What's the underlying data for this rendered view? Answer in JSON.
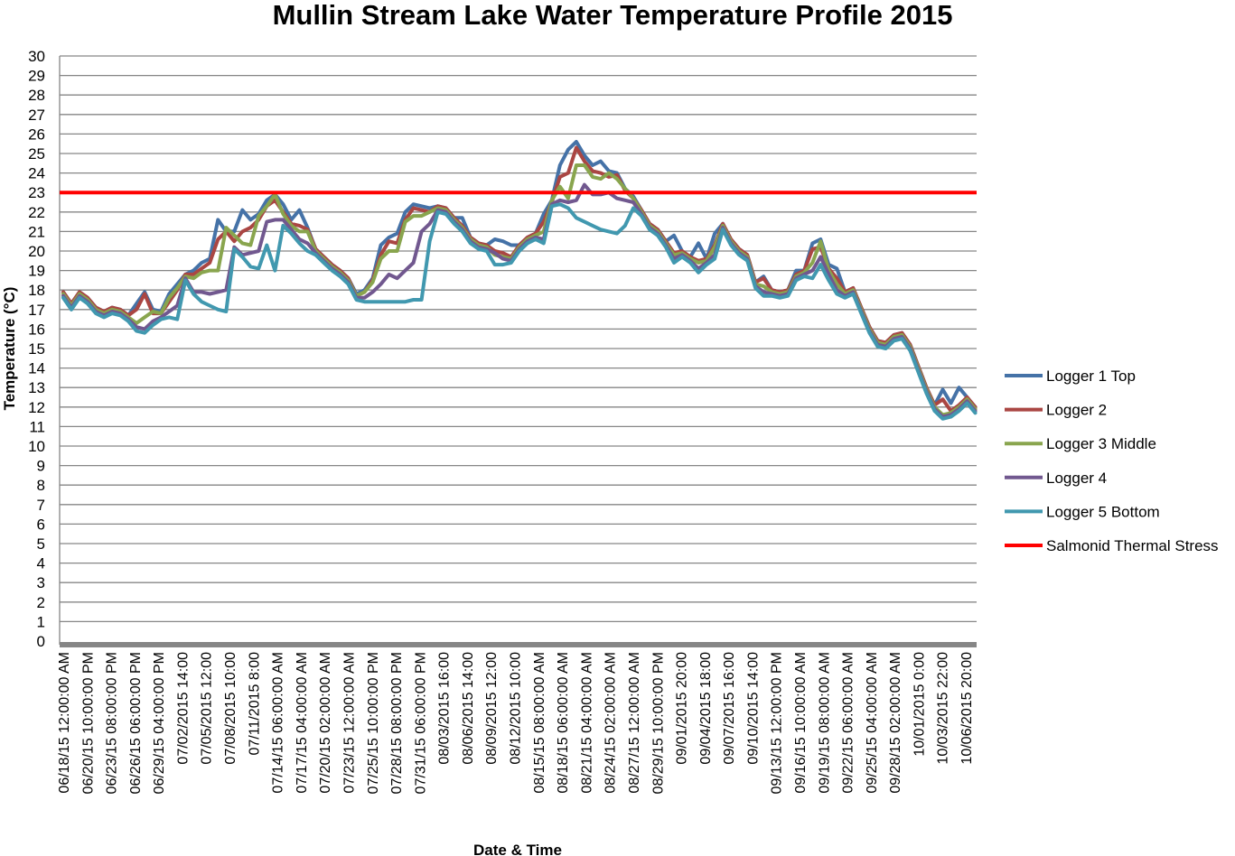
{
  "chart_data": {
    "type": "line",
    "title": "Mullin Stream Lake Water Temperature Profile 2015",
    "xlabel": "Date & Time",
    "ylabel": "Temperature (°C)",
    "ylim": [
      0,
      30
    ],
    "ytick_step": 1,
    "grid": true,
    "legend_position": "right",
    "x_tick_labels": [
      "06/18/15 12:00:00  AM",
      "06/20/15 10:00:00  PM",
      "06/23/15 08:00:00  PM",
      "06/26/15 06:00:00  PM",
      "06/29/15 04:00:00  PM",
      "07/02/2015 14:00",
      "07/05/2015 12:00",
      "07/08/2015 10:00",
      "07/11/2015 8:00",
      "07/14/15 06:00:00  AM",
      "07/17/15 04:00:00  AM",
      "07/20/15 02:00:00  AM",
      "07/23/15 12:00:00  AM",
      "07/25/15 10:00:00  PM",
      "07/28/15 08:00:00  PM",
      "07/31/15 06:00:00  PM",
      "08/03/2015 16:00",
      "08/06/2015 14:00",
      "08/09/2015 12:00",
      "08/12/2015 10:00",
      "08/15/15 08:00:00  AM",
      "08/18/15 06:00:00  AM",
      "08/21/15 04:00:00  AM",
      "08/24/15 02:00:00  AM",
      "08/27/15 12:00:00  AM",
      "08/29/15 10:00:00  PM",
      "09/01/2015 20:00",
      "09/04/2015 18:00",
      "09/07/2015 16:00",
      "09/10/2015 14:00",
      "09/13/15 12:00:00  PM",
      "09/16/15 10:00:00  AM",
      "09/19/15 08:00:00  AM",
      "09/22/15 06:00:00  AM",
      "09/25/15 04:00:00  AM",
      "09/28/15 02:00:00  AM",
      "10/01/2015 0:00",
      "10/03/2015 22:00",
      "10/06/2015 20:00"
    ],
    "x": [
      "06/18",
      "06/19",
      "06/20",
      "06/21",
      "06/22",
      "06/23",
      "06/24",
      "06/25",
      "06/26",
      "06/27",
      "06/28",
      "06/29",
      "06/30",
      "07/01",
      "07/02",
      "07/03",
      "07/04",
      "07/05",
      "07/06",
      "07/07",
      "07/08",
      "07/09",
      "07/10",
      "07/11",
      "07/12",
      "07/13",
      "07/14",
      "07/15",
      "07/16",
      "07/17",
      "07/18",
      "07/19",
      "07/20",
      "07/21",
      "07/22",
      "07/23",
      "07/24",
      "07/25",
      "07/26",
      "07/27",
      "07/28",
      "07/29",
      "07/30",
      "07/31",
      "08/01",
      "08/02",
      "08/03",
      "08/04",
      "08/05",
      "08/06",
      "08/07",
      "08/08",
      "08/09",
      "08/10",
      "08/11",
      "08/12",
      "08/13",
      "08/14",
      "08/15",
      "08/16",
      "08/17",
      "08/18",
      "08/19",
      "08/20",
      "08/21",
      "08/22",
      "08/23",
      "08/24",
      "08/25",
      "08/26",
      "08/27",
      "08/28",
      "08/29",
      "08/30",
      "08/31",
      "09/01",
      "09/02",
      "09/03",
      "09/04",
      "09/05",
      "09/06",
      "09/07",
      "09/08",
      "09/09",
      "09/10",
      "09/11",
      "09/12",
      "09/13",
      "09/14",
      "09/15",
      "09/16",
      "09/17",
      "09/18",
      "09/19",
      "09/20",
      "09/21",
      "09/22",
      "09/23",
      "09/24",
      "09/25",
      "09/26",
      "09/27",
      "09/28",
      "09/29",
      "09/30",
      "10/01",
      "10/02",
      "10/03",
      "10/04",
      "10/05",
      "10/06",
      "10/07",
      "10/08"
    ],
    "series": [
      {
        "name": "Logger 1 Top",
        "color": "#4572A7",
        "values": [
          17.9,
          17.3,
          17.9,
          17.6,
          17.1,
          16.9,
          17.1,
          17.0,
          16.7,
          17.3,
          17.9,
          17.0,
          16.9,
          17.8,
          18.3,
          18.8,
          19.0,
          19.4,
          19.6,
          21.6,
          21.0,
          21.0,
          22.1,
          21.6,
          21.9,
          22.6,
          22.9,
          22.4,
          21.6,
          22.1,
          21.2,
          20.1,
          19.7,
          19.3,
          19.0,
          18.6,
          17.8,
          18.0,
          18.6,
          20.3,
          20.7,
          20.9,
          22.0,
          22.4,
          22.3,
          22.2,
          22.3,
          22.2,
          21.7,
          21.7,
          20.7,
          20.4,
          20.3,
          20.6,
          20.5,
          20.3,
          20.3,
          20.7,
          20.9,
          21.9,
          22.6,
          24.4,
          25.2,
          25.6,
          24.9,
          24.4,
          24.6,
          24.1,
          24.0,
          23.2,
          22.8,
          22.1,
          21.4,
          21.1,
          20.5,
          20.8,
          20.0,
          19.7,
          20.4,
          19.6,
          20.9,
          21.4,
          20.6,
          20.1,
          19.8,
          18.4,
          18.7,
          18.0,
          17.9,
          18.0,
          19.0,
          19.0,
          20.4,
          20.6,
          19.3,
          19.1,
          17.9,
          18.1,
          17.1,
          16.1,
          15.4,
          15.3,
          15.7,
          15.8,
          15.2,
          14.1,
          13.0,
          12.1,
          12.9,
          12.2,
          13.0,
          12.5,
          12.0
        ]
      },
      {
        "name": "Logger 2",
        "color": "#AA4643",
        "values": [
          17.9,
          17.3,
          17.9,
          17.6,
          17.1,
          16.9,
          17.1,
          17.0,
          16.7,
          17.0,
          17.8,
          16.8,
          16.8,
          17.4,
          18.0,
          18.8,
          18.8,
          19.1,
          19.4,
          20.6,
          21.0,
          20.5,
          21.0,
          21.2,
          21.6,
          22.3,
          22.6,
          22.0,
          21.4,
          21.3,
          21.1,
          20.1,
          19.7,
          19.3,
          19.0,
          18.6,
          17.7,
          17.9,
          18.5,
          19.8,
          20.5,
          20.4,
          21.6,
          22.2,
          22.1,
          22.0,
          22.3,
          22.2,
          21.7,
          21.3,
          20.7,
          20.4,
          20.3,
          20.0,
          19.9,
          19.7,
          20.3,
          20.7,
          20.9,
          21.5,
          22.5,
          23.8,
          24.0,
          25.3,
          24.6,
          24.1,
          24.0,
          23.8,
          23.9,
          23.1,
          22.7,
          22.1,
          21.4,
          21.1,
          20.5,
          19.9,
          20.0,
          19.7,
          19.5,
          19.6,
          20.3,
          21.4,
          20.6,
          20.1,
          19.8,
          18.4,
          18.6,
          18.0,
          17.9,
          18.0,
          18.8,
          19.0,
          20.1,
          20.2,
          19.1,
          18.6,
          17.9,
          18.1,
          17.1,
          16.1,
          15.4,
          15.3,
          15.7,
          15.8,
          15.2,
          14.1,
          13.0,
          12.1,
          12.4,
          11.8,
          12.1,
          12.5,
          12.0
        ]
      },
      {
        "name": "Logger 3 Middle",
        "color": "#89A54E",
        "values": [
          17.8,
          17.2,
          17.8,
          17.5,
          17.0,
          16.8,
          17.0,
          16.9,
          16.6,
          16.3,
          16.6,
          16.9,
          16.8,
          17.6,
          18.1,
          18.7,
          18.6,
          18.9,
          19.0,
          19.0,
          21.2,
          20.8,
          20.4,
          20.3,
          21.8,
          22.3,
          22.9,
          21.9,
          21.3,
          21.0,
          21.0,
          20.0,
          19.6,
          19.2,
          18.9,
          18.5,
          17.7,
          17.9,
          18.4,
          19.6,
          20.0,
          20.0,
          21.5,
          21.8,
          21.8,
          22.0,
          22.2,
          22.1,
          21.6,
          21.2,
          20.6,
          20.3,
          20.2,
          19.8,
          19.7,
          19.6,
          20.2,
          20.6,
          20.8,
          21.0,
          22.6,
          23.3,
          22.7,
          24.4,
          24.4,
          23.8,
          23.7,
          24.0,
          23.7,
          23.2,
          22.7,
          22.0,
          21.3,
          21.0,
          20.4,
          19.8,
          19.9,
          19.6,
          19.4,
          19.5,
          20.2,
          21.3,
          20.5,
          20.0,
          19.7,
          18.3,
          18.2,
          17.9,
          17.8,
          17.9,
          18.7,
          18.9,
          19.4,
          20.5,
          19.0,
          18.3,
          17.8,
          18.0,
          17.0,
          16.0,
          15.3,
          15.2,
          15.6,
          15.7,
          15.1,
          14.0,
          12.9,
          12.0,
          11.6,
          11.7,
          12.0,
          12.4,
          11.9
        ]
      },
      {
        "name": "Logger 4",
        "color": "#71588F",
        "values": [
          17.7,
          17.1,
          17.7,
          17.4,
          16.9,
          16.7,
          16.9,
          16.8,
          16.5,
          16.1,
          16.0,
          16.4,
          16.6,
          16.9,
          17.2,
          18.6,
          17.9,
          17.9,
          17.8,
          17.9,
          18.0,
          20.2,
          19.8,
          19.9,
          20.0,
          21.5,
          21.6,
          21.6,
          21.1,
          20.6,
          20.4,
          19.9,
          19.5,
          19.1,
          18.8,
          18.4,
          17.6,
          17.6,
          17.9,
          18.3,
          18.8,
          18.6,
          19.0,
          19.4,
          21.0,
          21.4,
          22.1,
          22.0,
          21.5,
          21.1,
          20.5,
          20.2,
          20.1,
          19.9,
          19.6,
          19.5,
          20.1,
          20.5,
          20.7,
          20.6,
          22.4,
          22.6,
          22.5,
          22.6,
          23.4,
          22.9,
          22.9,
          23.0,
          22.7,
          22.6,
          22.5,
          21.9,
          21.2,
          20.9,
          20.3,
          19.6,
          19.8,
          19.5,
          19.1,
          19.4,
          19.8,
          21.2,
          20.4,
          19.9,
          19.6,
          18.2,
          17.9,
          17.8,
          17.7,
          17.8,
          18.6,
          18.8,
          19.0,
          19.7,
          18.8,
          18.0,
          17.7,
          17.9,
          16.9,
          15.9,
          15.2,
          15.1,
          15.5,
          15.6,
          15.0,
          13.9,
          12.8,
          11.9,
          11.5,
          11.6,
          11.9,
          12.3,
          11.8
        ]
      },
      {
        "name": "Logger 5 Bottom",
        "color": "#4198AF",
        "values": [
          17.6,
          17.0,
          17.6,
          17.3,
          16.8,
          16.6,
          16.8,
          16.7,
          16.4,
          15.9,
          15.8,
          16.2,
          16.5,
          16.6,
          16.5,
          18.5,
          17.8,
          17.4,
          17.2,
          17.0,
          16.9,
          20.1,
          19.7,
          19.2,
          19.1,
          20.3,
          19.0,
          21.3,
          20.9,
          20.4,
          20.0,
          19.8,
          19.4,
          19.0,
          18.7,
          18.3,
          17.5,
          17.4,
          17.4,
          17.4,
          17.4,
          17.4,
          17.4,
          17.5,
          17.5,
          20.5,
          22.0,
          21.9,
          21.4,
          21.0,
          20.4,
          20.1,
          20.0,
          19.3,
          19.3,
          19.4,
          20.0,
          20.4,
          20.6,
          20.4,
          22.3,
          22.4,
          22.2,
          21.7,
          21.5,
          21.3,
          21.1,
          21.0,
          20.9,
          21.3,
          22.2,
          21.8,
          21.1,
          20.8,
          20.2,
          19.4,
          19.7,
          19.4,
          18.9,
          19.3,
          19.6,
          21.1,
          20.3,
          19.8,
          19.5,
          18.1,
          17.7,
          17.7,
          17.6,
          17.7,
          18.5,
          18.7,
          18.6,
          19.3,
          18.5,
          17.8,
          17.6,
          17.8,
          16.8,
          15.8,
          15.1,
          15.0,
          15.4,
          15.5,
          14.9,
          13.8,
          12.7,
          11.8,
          11.4,
          11.5,
          11.8,
          12.2,
          11.7
        ]
      },
      {
        "name": "Salmonid Thermal Stress",
        "color": "#FF0000",
        "constant": 23
      }
    ]
  }
}
